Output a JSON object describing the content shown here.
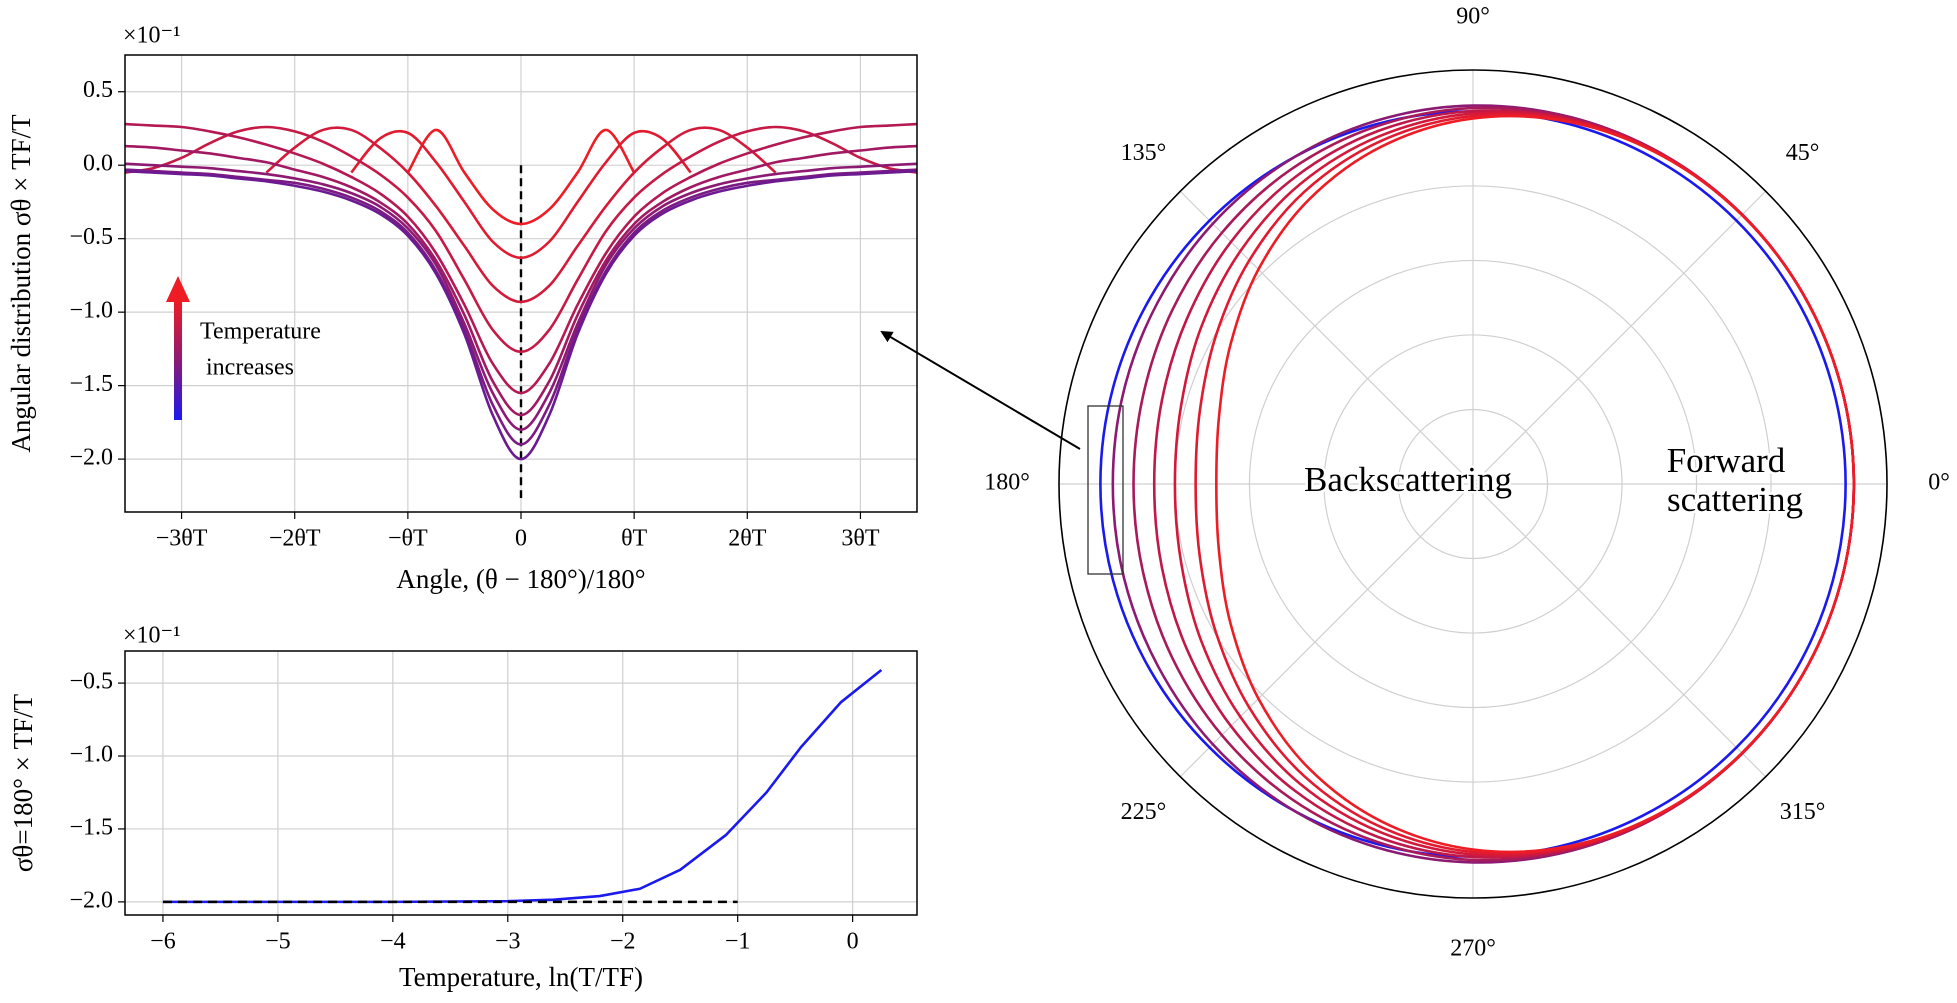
{
  "chart_data": [
    {
      "type": "line",
      "ylabel": "Angular distribution σθ × TF/T",
      "xlabel": "Angle, (θ − 180°)/180°",
      "y_offset_label": "×10⁻¹",
      "annotation": [
        "Temperature",
        "increases"
      ],
      "x": [
        -3.5,
        -3.25,
        -3,
        -2.75,
        -2.5,
        -2.25,
        -2,
        -1.75,
        -1.5,
        -1.25,
        -1,
        -0.75,
        -0.5,
        -0.25,
        0,
        0.25,
        0.5,
        0.75,
        1,
        1.25,
        1.5,
        1.75,
        2,
        2.25,
        2.5,
        2.75,
        3,
        3.25,
        3.5
      ],
      "series": [
        {
          "color": "#ee1c25",
          "values": [
            null,
            null,
            null,
            null,
            null,
            null,
            null,
            null,
            null,
            null,
            -0.05,
            0.24,
            -0.05,
            -0.3,
            -0.4,
            -0.3,
            -0.05,
            0.24,
            -0.05,
            null,
            null,
            null,
            null,
            null,
            null,
            null,
            null,
            null,
            null
          ]
        },
        {
          "color": "#e11b2f",
          "values": [
            null,
            null,
            null,
            null,
            null,
            null,
            null,
            null,
            -0.05,
            0.18,
            0.22,
            0.02,
            -0.25,
            -0.52,
            -0.63,
            -0.52,
            -0.25,
            0.02,
            0.22,
            0.18,
            -0.05,
            null,
            null,
            null,
            null,
            null,
            null,
            null,
            null
          ]
        },
        {
          "color": "#d41a3a",
          "values": [
            null,
            null,
            null,
            null,
            null,
            -0.05,
            0.12,
            0.24,
            0.24,
            0.12,
            -0.05,
            -0.28,
            -0.55,
            -0.82,
            -0.93,
            -0.82,
            -0.55,
            -0.28,
            -0.05,
            0.12,
            0.24,
            0.24,
            0.12,
            -0.05,
            null,
            null,
            null,
            null,
            null
          ]
        },
        {
          "color": "#c51946",
          "values": [
            -0.05,
            -0.02,
            0.05,
            0.15,
            0.23,
            0.26,
            0.23,
            0.16,
            0.06,
            -0.06,
            -0.22,
            -0.45,
            -0.78,
            -1.12,
            -1.27,
            -1.12,
            -0.78,
            -0.45,
            -0.22,
            -0.06,
            0.06,
            0.16,
            0.23,
            0.26,
            0.23,
            0.15,
            0.05,
            -0.02,
            -0.05
          ]
        },
        {
          "color": "#b41953",
          "values": [
            0.28,
            0.27,
            0.26,
            0.23,
            0.19,
            0.14,
            0.08,
            0.01,
            -0.08,
            -0.19,
            -0.35,
            -0.6,
            -0.95,
            -1.35,
            -1.55,
            -1.35,
            -0.95,
            -0.6,
            -0.35,
            -0.19,
            -0.08,
            0.01,
            0.08,
            0.14,
            0.19,
            0.23,
            0.26,
            0.27,
            0.28
          ]
        },
        {
          "color": "#a11962",
          "values": [
            0.13,
            0.12,
            0.1,
            0.08,
            0.05,
            0.02,
            -0.03,
            -0.08,
            -0.15,
            -0.25,
            -0.4,
            -0.65,
            -1.02,
            -1.47,
            -1.7,
            -1.47,
            -1.02,
            -0.65,
            -0.4,
            -0.25,
            -0.15,
            -0.08,
            -0.03,
            0.02,
            0.05,
            0.08,
            0.1,
            0.12,
            0.13
          ]
        },
        {
          "color": "#8d1a72",
          "values": [
            0.01,
            0,
            -0.01,
            -0.02,
            -0.04,
            -0.06,
            -0.09,
            -0.13,
            -0.19,
            -0.28,
            -0.43,
            -0.68,
            -1.08,
            -1.55,
            -1.8,
            -1.55,
            -1.08,
            -0.68,
            -0.43,
            -0.28,
            -0.19,
            -0.13,
            -0.09,
            -0.06,
            -0.04,
            -0.02,
            -0.01,
            0,
            0.01
          ]
        },
        {
          "color": "#7c1a83",
          "values": [
            -0.03,
            -0.04,
            -0.05,
            -0.06,
            -0.08,
            -0.1,
            -0.12,
            -0.16,
            -0.22,
            -0.31,
            -0.46,
            -0.72,
            -1.12,
            -1.63,
            -1.9,
            -1.63,
            -1.12,
            -0.72,
            -0.46,
            -0.31,
            -0.22,
            -0.16,
            -0.12,
            -0.1,
            -0.08,
            -0.06,
            -0.05,
            -0.04,
            -0.03
          ]
        },
        {
          "color": "#6c1a92",
          "values": [
            -0.04,
            -0.05,
            -0.06,
            -0.07,
            -0.09,
            -0.11,
            -0.14,
            -0.18,
            -0.24,
            -0.33,
            -0.48,
            -0.74,
            -1.15,
            -1.7,
            -2,
            -1.7,
            -1.15,
            -0.74,
            -0.48,
            -0.33,
            -0.24,
            -0.18,
            -0.14,
            -0.11,
            -0.09,
            -0.07,
            -0.06,
            -0.05,
            -0.04
          ]
        }
      ],
      "xlim": [
        -3.5,
        3.5
      ],
      "ylim": [
        -2.36,
        0.75
      ],
      "xticks": [
        {
          "value": -3,
          "label": "−3θT"
        },
        {
          "value": -2,
          "label": "−2θT"
        },
        {
          "value": -1,
          "label": "−θT"
        },
        0,
        {
          "value": 1,
          "label": "θT"
        },
        {
          "value": 2,
          "label": "2θT"
        },
        {
          "value": 3,
          "label": "3θT"
        }
      ],
      "yticks": [
        0.5,
        {
          "value": 0,
          "label": "0.0"
        },
        {
          "value": -0.5,
          "label": "−0.5"
        },
        {
          "value": -1,
          "label": "−1.0"
        },
        {
          "value": -1.5,
          "label": "−1.5"
        },
        {
          "value": -2,
          "label": "−2.0"
        }
      ],
      "grid": true
    },
    {
      "type": "line",
      "ylabel": "σθ=180° × TF/T",
      "xlabel": "Temperature, ln(T/TF)",
      "y_offset_label": "×10⁻¹",
      "series": [
        {
          "color": "#1a1aee",
          "x": [
            -6,
            -5,
            -4,
            -3,
            -2.6,
            -2.2,
            -1.85,
            -1.5,
            -1.1,
            -0.75,
            -0.45,
            -0.1,
            0.25
          ],
          "values": [
            -2,
            -2,
            -2,
            -1.995,
            -1.985,
            -1.96,
            -1.91,
            -1.78,
            -1.54,
            -1.25,
            -0.94,
            -0.63,
            -0.41
          ]
        },
        {
          "color": "#000000",
          "linestyle": "dashed",
          "x": [
            -6,
            -1
          ],
          "values": [
            -2,
            -2
          ]
        }
      ],
      "xlim": [
        -6.33,
        0.56
      ],
      "ylim": [
        -2.09,
        -0.28
      ],
      "xticks": [
        {
          "value": -6,
          "label": "−6"
        },
        {
          "value": -5,
          "label": "−5"
        },
        {
          "value": -4,
          "label": "−4"
        },
        {
          "value": -3,
          "label": "−3"
        },
        {
          "value": -2,
          "label": "−2"
        },
        {
          "value": -1,
          "label": "−1"
        },
        0
      ],
      "yticks": [
        {
          "value": -0.5,
          "label": "−0.5"
        },
        {
          "value": -1,
          "label": "−1.0"
        },
        {
          "value": -1.5,
          "label": "−1.5"
        },
        {
          "value": -2,
          "label": "−2.0"
        }
      ],
      "grid": true
    },
    {
      "type": "polar",
      "annotations": [
        [
          "Backscattering"
        ],
        [
          "Forward",
          "scattering"
        ]
      ],
      "theta": [
        0,
        15,
        30,
        45,
        60,
        75,
        90,
        105,
        120,
        135,
        150,
        165,
        180,
        195,
        210,
        225,
        240,
        255,
        270,
        285,
        300,
        315,
        330,
        345
      ],
      "series": [
        {
          "color": "#1a1aee",
          "values": [
            0.9,
            0.9,
            0.9,
            0.9,
            0.9,
            0.9,
            0.9,
            0.9,
            0.9,
            0.9,
            0.9,
            0.9,
            0.9,
            0.9,
            0.9,
            0.9,
            0.9,
            0.9,
            0.9,
            0.9,
            0.9,
            0.9,
            0.9,
            0.9
          ]
        },
        {
          "color": "#8d1a72",
          "values": [
            0.92,
            0.92,
            0.92,
            0.92,
            0.919,
            0.917,
            0.914,
            0.908,
            0.899,
            0.889,
            0.879,
            0.873,
            0.87,
            0.873,
            0.879,
            0.889,
            0.899,
            0.908,
            0.914,
            0.917,
            0.919,
            0.92,
            0.92,
            0.92
          ]
        },
        {
          "color": "#a81a5a",
          "values": [
            0.92,
            0.92,
            0.92,
            0.92,
            0.918,
            0.915,
            0.908,
            0.895,
            0.878,
            0.858,
            0.839,
            0.825,
            0.82,
            0.825,
            0.839,
            0.858,
            0.878,
            0.895,
            0.908,
            0.915,
            0.918,
            0.92,
            0.92,
            0.92
          ]
        },
        {
          "color": "#c01848",
          "values": [
            0.92,
            0.92,
            0.92,
            0.92,
            0.918,
            0.912,
            0.901,
            0.883,
            0.857,
            0.827,
            0.798,
            0.778,
            0.77,
            0.778,
            0.798,
            0.827,
            0.857,
            0.883,
            0.901,
            0.912,
            0.918,
            0.92,
            0.92,
            0.92
          ]
        },
        {
          "color": "#d2193b",
          "values": [
            0.92,
            0.92,
            0.92,
            0.919,
            0.917,
            0.91,
            0.895,
            0.87,
            0.836,
            0.795,
            0.758,
            0.73,
            0.72,
            0.73,
            0.758,
            0.795,
            0.836,
            0.87,
            0.895,
            0.91,
            0.917,
            0.919,
            0.92,
            0.92
          ]
        },
        {
          "color": "#e01a30",
          "values": [
            0.92,
            0.92,
            0.92,
            0.919,
            0.916,
            0.907,
            0.889,
            0.858,
            0.815,
            0.764,
            0.717,
            0.683,
            0.67,
            0.683,
            0.717,
            0.764,
            0.815,
            0.858,
            0.889,
            0.907,
            0.916,
            0.919,
            0.92,
            0.92
          ]
        },
        {
          "color": "#ee1c25",
          "values": [
            0.92,
            0.92,
            0.92,
            0.919,
            0.915,
            0.905,
            0.883,
            0.845,
            0.793,
            0.733,
            0.676,
            0.635,
            0.62,
            0.635,
            0.676,
            0.733,
            0.793,
            0.845,
            0.883,
            0.905,
            0.915,
            0.919,
            0.92,
            0.92
          ]
        }
      ],
      "rlim": [
        0,
        1
      ],
      "rticks": [
        0.18,
        0.36,
        0.54,
        0.72
      ],
      "thetaticks": [
        {
          "value": 0,
          "label": "0°"
        },
        {
          "value": 45,
          "label": "45°"
        },
        {
          "value": 90,
          "label": "90°"
        },
        {
          "value": 135,
          "label": "135°"
        },
        {
          "value": 180,
          "label": "180°"
        },
        {
          "value": 225,
          "label": "225°"
        },
        {
          "value": 270,
          "label": "270°"
        },
        {
          "value": 315,
          "label": "315°"
        }
      ],
      "grid": true
    }
  ]
}
